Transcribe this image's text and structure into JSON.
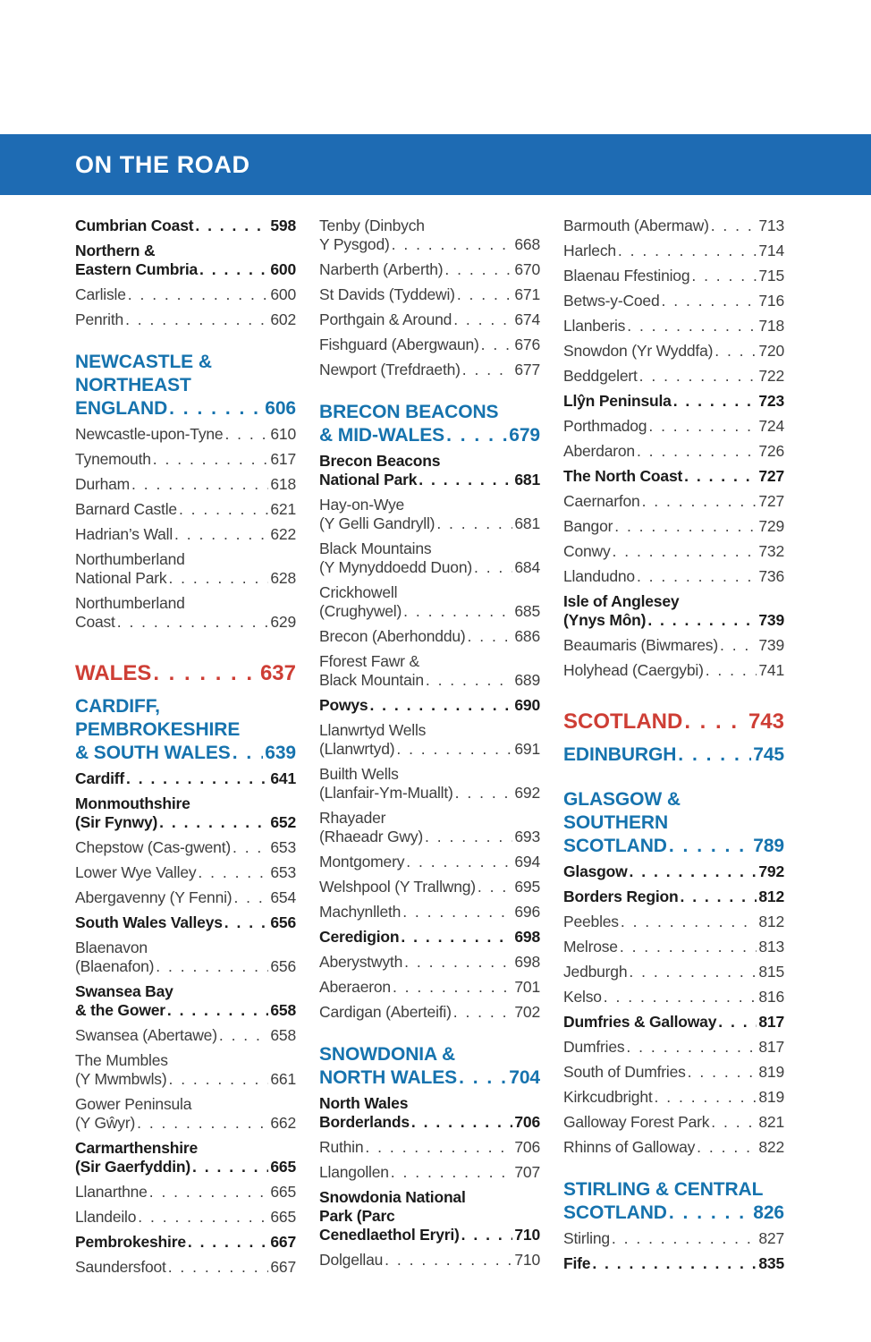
{
  "header": {
    "title": "ON THE ROAD"
  },
  "colors": {
    "band_blue": "#1e6bb3",
    "section_blue": "#1673ae",
    "part_red": "#ce3e35",
    "text_plain": "#3e3e3e",
    "text_bold": "#1b1b1b"
  },
  "columns": [
    [
      {
        "style": "bold",
        "lines": [
          "Cumbrian Coast"
        ],
        "page": "598"
      },
      {
        "style": "bold",
        "lines": [
          "Northern &",
          "Eastern Cumbria"
        ],
        "page": "600"
      },
      {
        "style": "plain",
        "lines": [
          "Carlisle"
        ],
        "page": "600"
      },
      {
        "style": "plain",
        "lines": [
          "Penrith"
        ],
        "page": "602"
      },
      {
        "style": "section",
        "lines": [
          "NEWCASTLE &",
          "NORTHEAST",
          "ENGLAND"
        ],
        "page": "606"
      },
      {
        "style": "plain",
        "lines": [
          "Newcastle-upon-Tyne"
        ],
        "page": "610"
      },
      {
        "style": "plain",
        "lines": [
          "Tynemouth"
        ],
        "page": "617"
      },
      {
        "style": "plain",
        "lines": [
          "Durham"
        ],
        "page": "618"
      },
      {
        "style": "plain",
        "lines": [
          "Barnard Castle"
        ],
        "page": "621"
      },
      {
        "style": "plain",
        "lines": [
          "Hadrian’s Wall"
        ],
        "page": "622"
      },
      {
        "style": "plain",
        "lines": [
          "Northumberland",
          "National Park"
        ],
        "page": "628"
      },
      {
        "style": "plain",
        "lines": [
          "Northumberland",
          "Coast"
        ],
        "page": "629"
      },
      {
        "style": "part",
        "lines": [
          "WALES"
        ],
        "page": "637"
      },
      {
        "style": "section",
        "lines": [
          "CARDIFF,",
          "PEMBROKESHIRE",
          "& SOUTH WALES"
        ],
        "page": "639"
      },
      {
        "style": "bold",
        "lines": [
          "Cardiff"
        ],
        "page": "641"
      },
      {
        "style": "bold",
        "lines": [
          "Monmouthshire",
          "(Sir Fynwy)"
        ],
        "page": "652"
      },
      {
        "style": "plain",
        "lines": [
          "Chepstow (Cas-gwent)"
        ],
        "page": "653"
      },
      {
        "style": "plain",
        "lines": [
          "Lower Wye Valley"
        ],
        "page": "653"
      },
      {
        "style": "plain",
        "lines": [
          "Abergavenny (Y Fenni)"
        ],
        "page": "654"
      },
      {
        "style": "bold",
        "lines": [
          "South Wales Valleys"
        ],
        "page": "656"
      },
      {
        "style": "plain",
        "lines": [
          "Blaenavon",
          "(Blaenafon)"
        ],
        "page": "656"
      },
      {
        "style": "bold",
        "lines": [
          "Swansea Bay",
          "& the Gower"
        ],
        "page": "658"
      },
      {
        "style": "plain",
        "lines": [
          "Swansea (Abertawe)"
        ],
        "page": "658"
      },
      {
        "style": "plain",
        "lines": [
          "The Mumbles",
          "(Y Mwmbwls)"
        ],
        "page": "661"
      },
      {
        "style": "plain",
        "lines": [
          "Gower Peninsula",
          "(Y Gŵyr)"
        ],
        "page": "662"
      },
      {
        "style": "bold",
        "lines": [
          "Carmarthenshire",
          "(Sir Gaerfyddin)"
        ],
        "page": "665"
      },
      {
        "style": "plain",
        "lines": [
          "Llanarthne"
        ],
        "page": "665"
      },
      {
        "style": "plain",
        "lines": [
          "Llandeilo"
        ],
        "page": "665"
      },
      {
        "style": "bold",
        "lines": [
          "Pembrokeshire"
        ],
        "page": "667"
      },
      {
        "style": "plain",
        "lines": [
          "Saundersfoot"
        ],
        "page": "667"
      }
    ],
    [
      {
        "style": "plain",
        "lines": [
          "Tenby (Dinbych",
          "Y Pysgod)"
        ],
        "page": "668"
      },
      {
        "style": "plain",
        "lines": [
          "Narberth (Arberth)"
        ],
        "page": "670"
      },
      {
        "style": "plain",
        "lines": [
          "St Davids (Tyddewi)"
        ],
        "page": "671"
      },
      {
        "style": "plain",
        "lines": [
          "Porthgain & Around"
        ],
        "page": "674"
      },
      {
        "style": "plain",
        "lines": [
          "Fishguard (Abergwaun)"
        ],
        "page": "676"
      },
      {
        "style": "plain",
        "lines": [
          "Newport (Trefdraeth)"
        ],
        "page": "677"
      },
      {
        "style": "section",
        "lines": [
          "BRECON BEACONS",
          "& MID-WALES"
        ],
        "page": "679"
      },
      {
        "style": "bold",
        "lines": [
          "Brecon Beacons",
          "National Park"
        ],
        "page": "681"
      },
      {
        "style": "plain",
        "lines": [
          "Hay-on-Wye",
          "(Y Gelli Gandryll)"
        ],
        "page": "681"
      },
      {
        "style": "plain",
        "lines": [
          "Black Mountains",
          "(Y Mynyddoedd Duon)"
        ],
        "page": "684"
      },
      {
        "style": "plain",
        "lines": [
          "Crickhowell",
          "(Crughywel)"
        ],
        "page": "685"
      },
      {
        "style": "plain",
        "lines": [
          "Brecon (Aberhonddu)"
        ],
        "page": "686"
      },
      {
        "style": "plain",
        "lines": [
          "Fforest Fawr &",
          "Black Mountain"
        ],
        "page": "689"
      },
      {
        "style": "bold",
        "lines": [
          "Powys"
        ],
        "page": "690"
      },
      {
        "style": "plain",
        "lines": [
          "Llanwrtyd Wells",
          "(Llanwrtyd)"
        ],
        "page": "691"
      },
      {
        "style": "plain",
        "lines": [
          "Builth Wells",
          "(Llanfair-Ym-Muallt)"
        ],
        "page": "692"
      },
      {
        "style": "plain",
        "lines": [
          "Rhayader",
          "(Rhaeadr Gwy)"
        ],
        "page": "693"
      },
      {
        "style": "plain",
        "lines": [
          "Montgomery"
        ],
        "page": "694"
      },
      {
        "style": "plain",
        "lines": [
          "Welshpool (Y Trallwng)"
        ],
        "page": "695"
      },
      {
        "style": "plain",
        "lines": [
          "Machynlleth"
        ],
        "page": "696"
      },
      {
        "style": "bold",
        "lines": [
          "Ceredigion"
        ],
        "page": "698"
      },
      {
        "style": "plain",
        "lines": [
          "Aberystwyth"
        ],
        "page": "698"
      },
      {
        "style": "plain",
        "lines": [
          "Aberaeron"
        ],
        "page": "701"
      },
      {
        "style": "plain",
        "lines": [
          "Cardigan (Aberteifi)"
        ],
        "page": "702"
      },
      {
        "style": "section",
        "lines": [
          "SNOWDONIA &",
          "NORTH WALES"
        ],
        "page": "704"
      },
      {
        "style": "bold",
        "lines": [
          "North Wales",
          "Borderlands"
        ],
        "page": "706"
      },
      {
        "style": "plain",
        "lines": [
          "Ruthin"
        ],
        "page": "706"
      },
      {
        "style": "plain",
        "lines": [
          "Llangollen"
        ],
        "page": "707"
      },
      {
        "style": "bold",
        "lines": [
          "Snowdonia National",
          "Park (Parc",
          "Cenedlaethol Eryri)"
        ],
        "page": "710"
      },
      {
        "style": "plain",
        "lines": [
          "Dolgellau"
        ],
        "page": "710"
      }
    ],
    [
      {
        "style": "plain",
        "lines": [
          "Barmouth (Abermaw)"
        ],
        "page": "713"
      },
      {
        "style": "plain",
        "lines": [
          "Harlech"
        ],
        "page": "714"
      },
      {
        "style": "plain",
        "lines": [
          "Blaenau Ffestiniog"
        ],
        "page": "715"
      },
      {
        "style": "plain",
        "lines": [
          "Betws-y-Coed"
        ],
        "page": "716"
      },
      {
        "style": "plain",
        "lines": [
          "Llanberis"
        ],
        "page": "718"
      },
      {
        "style": "plain",
        "lines": [
          "Snowdon (Yr Wyddfa)"
        ],
        "page": "720"
      },
      {
        "style": "plain",
        "lines": [
          "Beddgelert"
        ],
        "page": "722"
      },
      {
        "style": "bold",
        "lines": [
          "Llŷn Peninsula"
        ],
        "page": "723"
      },
      {
        "style": "plain",
        "lines": [
          "Porthmadog"
        ],
        "page": "724"
      },
      {
        "style": "plain",
        "lines": [
          "Aberdaron"
        ],
        "page": "726"
      },
      {
        "style": "bold",
        "lines": [
          "The North Coast"
        ],
        "page": "727"
      },
      {
        "style": "plain",
        "lines": [
          "Caernarfon"
        ],
        "page": "727"
      },
      {
        "style": "plain",
        "lines": [
          "Bangor"
        ],
        "page": "729"
      },
      {
        "style": "plain",
        "lines": [
          "Conwy"
        ],
        "page": "732"
      },
      {
        "style": "plain",
        "lines": [
          "Llandudno"
        ],
        "page": "736"
      },
      {
        "style": "bold",
        "lines": [
          "Isle of Anglesey",
          "(Ynys Môn)"
        ],
        "page": "739"
      },
      {
        "style": "plain",
        "lines": [
          "Beaumaris (Biwmares)"
        ],
        "page": "739"
      },
      {
        "style": "plain",
        "lines": [
          "Holyhead (Caergybi)"
        ],
        "page": "741"
      },
      {
        "style": "part",
        "lines": [
          "SCOTLAND"
        ],
        "page": "743"
      },
      {
        "style": "section",
        "lines": [
          "EDINBURGH"
        ],
        "page": "745"
      },
      {
        "style": "section",
        "lines": [
          "GLASGOW &",
          "SOUTHERN",
          "SCOTLAND"
        ],
        "page": "789"
      },
      {
        "style": "bold",
        "lines": [
          "Glasgow"
        ],
        "page": "792"
      },
      {
        "style": "bold",
        "lines": [
          "Borders Region"
        ],
        "page": "812"
      },
      {
        "style": "plain",
        "lines": [
          "Peebles"
        ],
        "page": "812"
      },
      {
        "style": "plain",
        "lines": [
          "Melrose"
        ],
        "page": "813"
      },
      {
        "style": "plain",
        "lines": [
          "Jedburgh"
        ],
        "page": "815"
      },
      {
        "style": "plain",
        "lines": [
          "Kelso"
        ],
        "page": "816"
      },
      {
        "style": "bold",
        "lines": [
          "Dumfries & Galloway"
        ],
        "page": "817"
      },
      {
        "style": "plain",
        "lines": [
          "Dumfries"
        ],
        "page": "817"
      },
      {
        "style": "plain",
        "lines": [
          "South of Dumfries"
        ],
        "page": "819"
      },
      {
        "style": "plain",
        "lines": [
          "Kirkcudbright"
        ],
        "page": "819"
      },
      {
        "style": "plain",
        "lines": [
          "Galloway Forest Park"
        ],
        "page": "821"
      },
      {
        "style": "plain",
        "lines": [
          "Rhinns of Galloway"
        ],
        "page": "822"
      },
      {
        "style": "section",
        "lines": [
          "STIRLING & CENTRAL",
          "SCOTLAND"
        ],
        "page": "826"
      },
      {
        "style": "plain",
        "lines": [
          "Stirling"
        ],
        "page": "827"
      },
      {
        "style": "bold",
        "lines": [
          "Fife"
        ],
        "page": "835"
      }
    ]
  ]
}
